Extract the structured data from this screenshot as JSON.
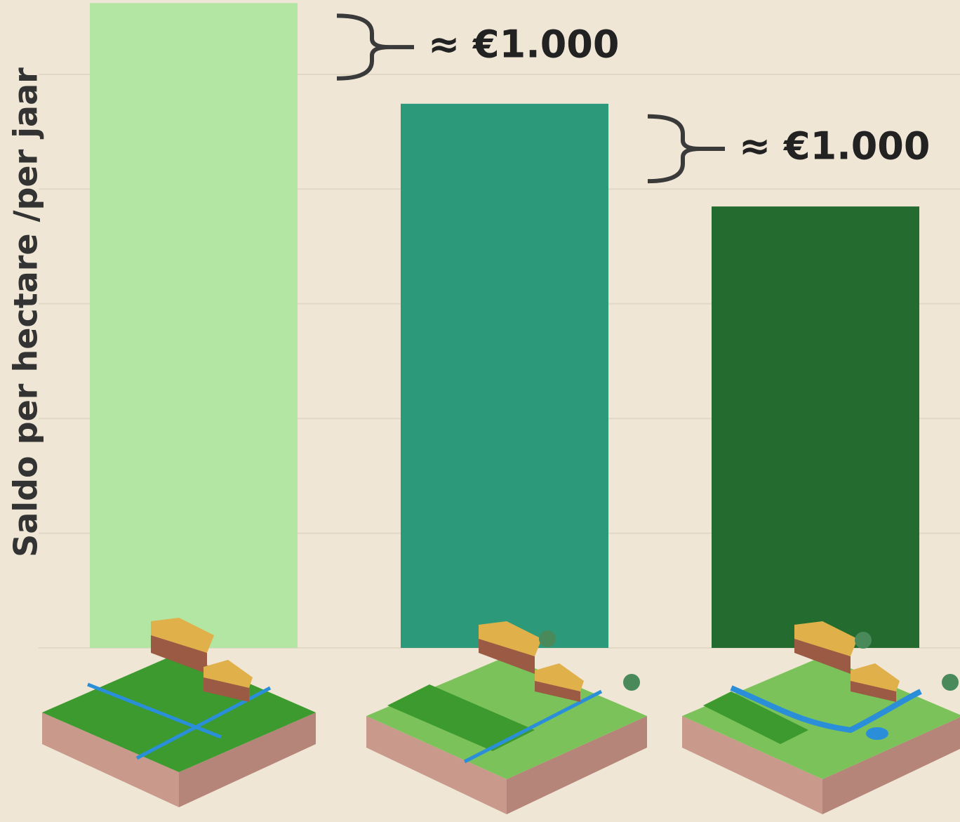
{
  "chart_data": {
    "type": "bar",
    "y_label": "Saldo per hectare /per jaar",
    "values": [
      6340,
      5350,
      4340
    ],
    "colors": [
      "#b3e6a3",
      "#2b997a",
      "#236b2f"
    ],
    "ylim": [
      0,
      6370
    ],
    "grid": true,
    "annotations": [
      {
        "text": "≈ €1.000"
      },
      {
        "text": "≈ €1.000"
      }
    ]
  }
}
